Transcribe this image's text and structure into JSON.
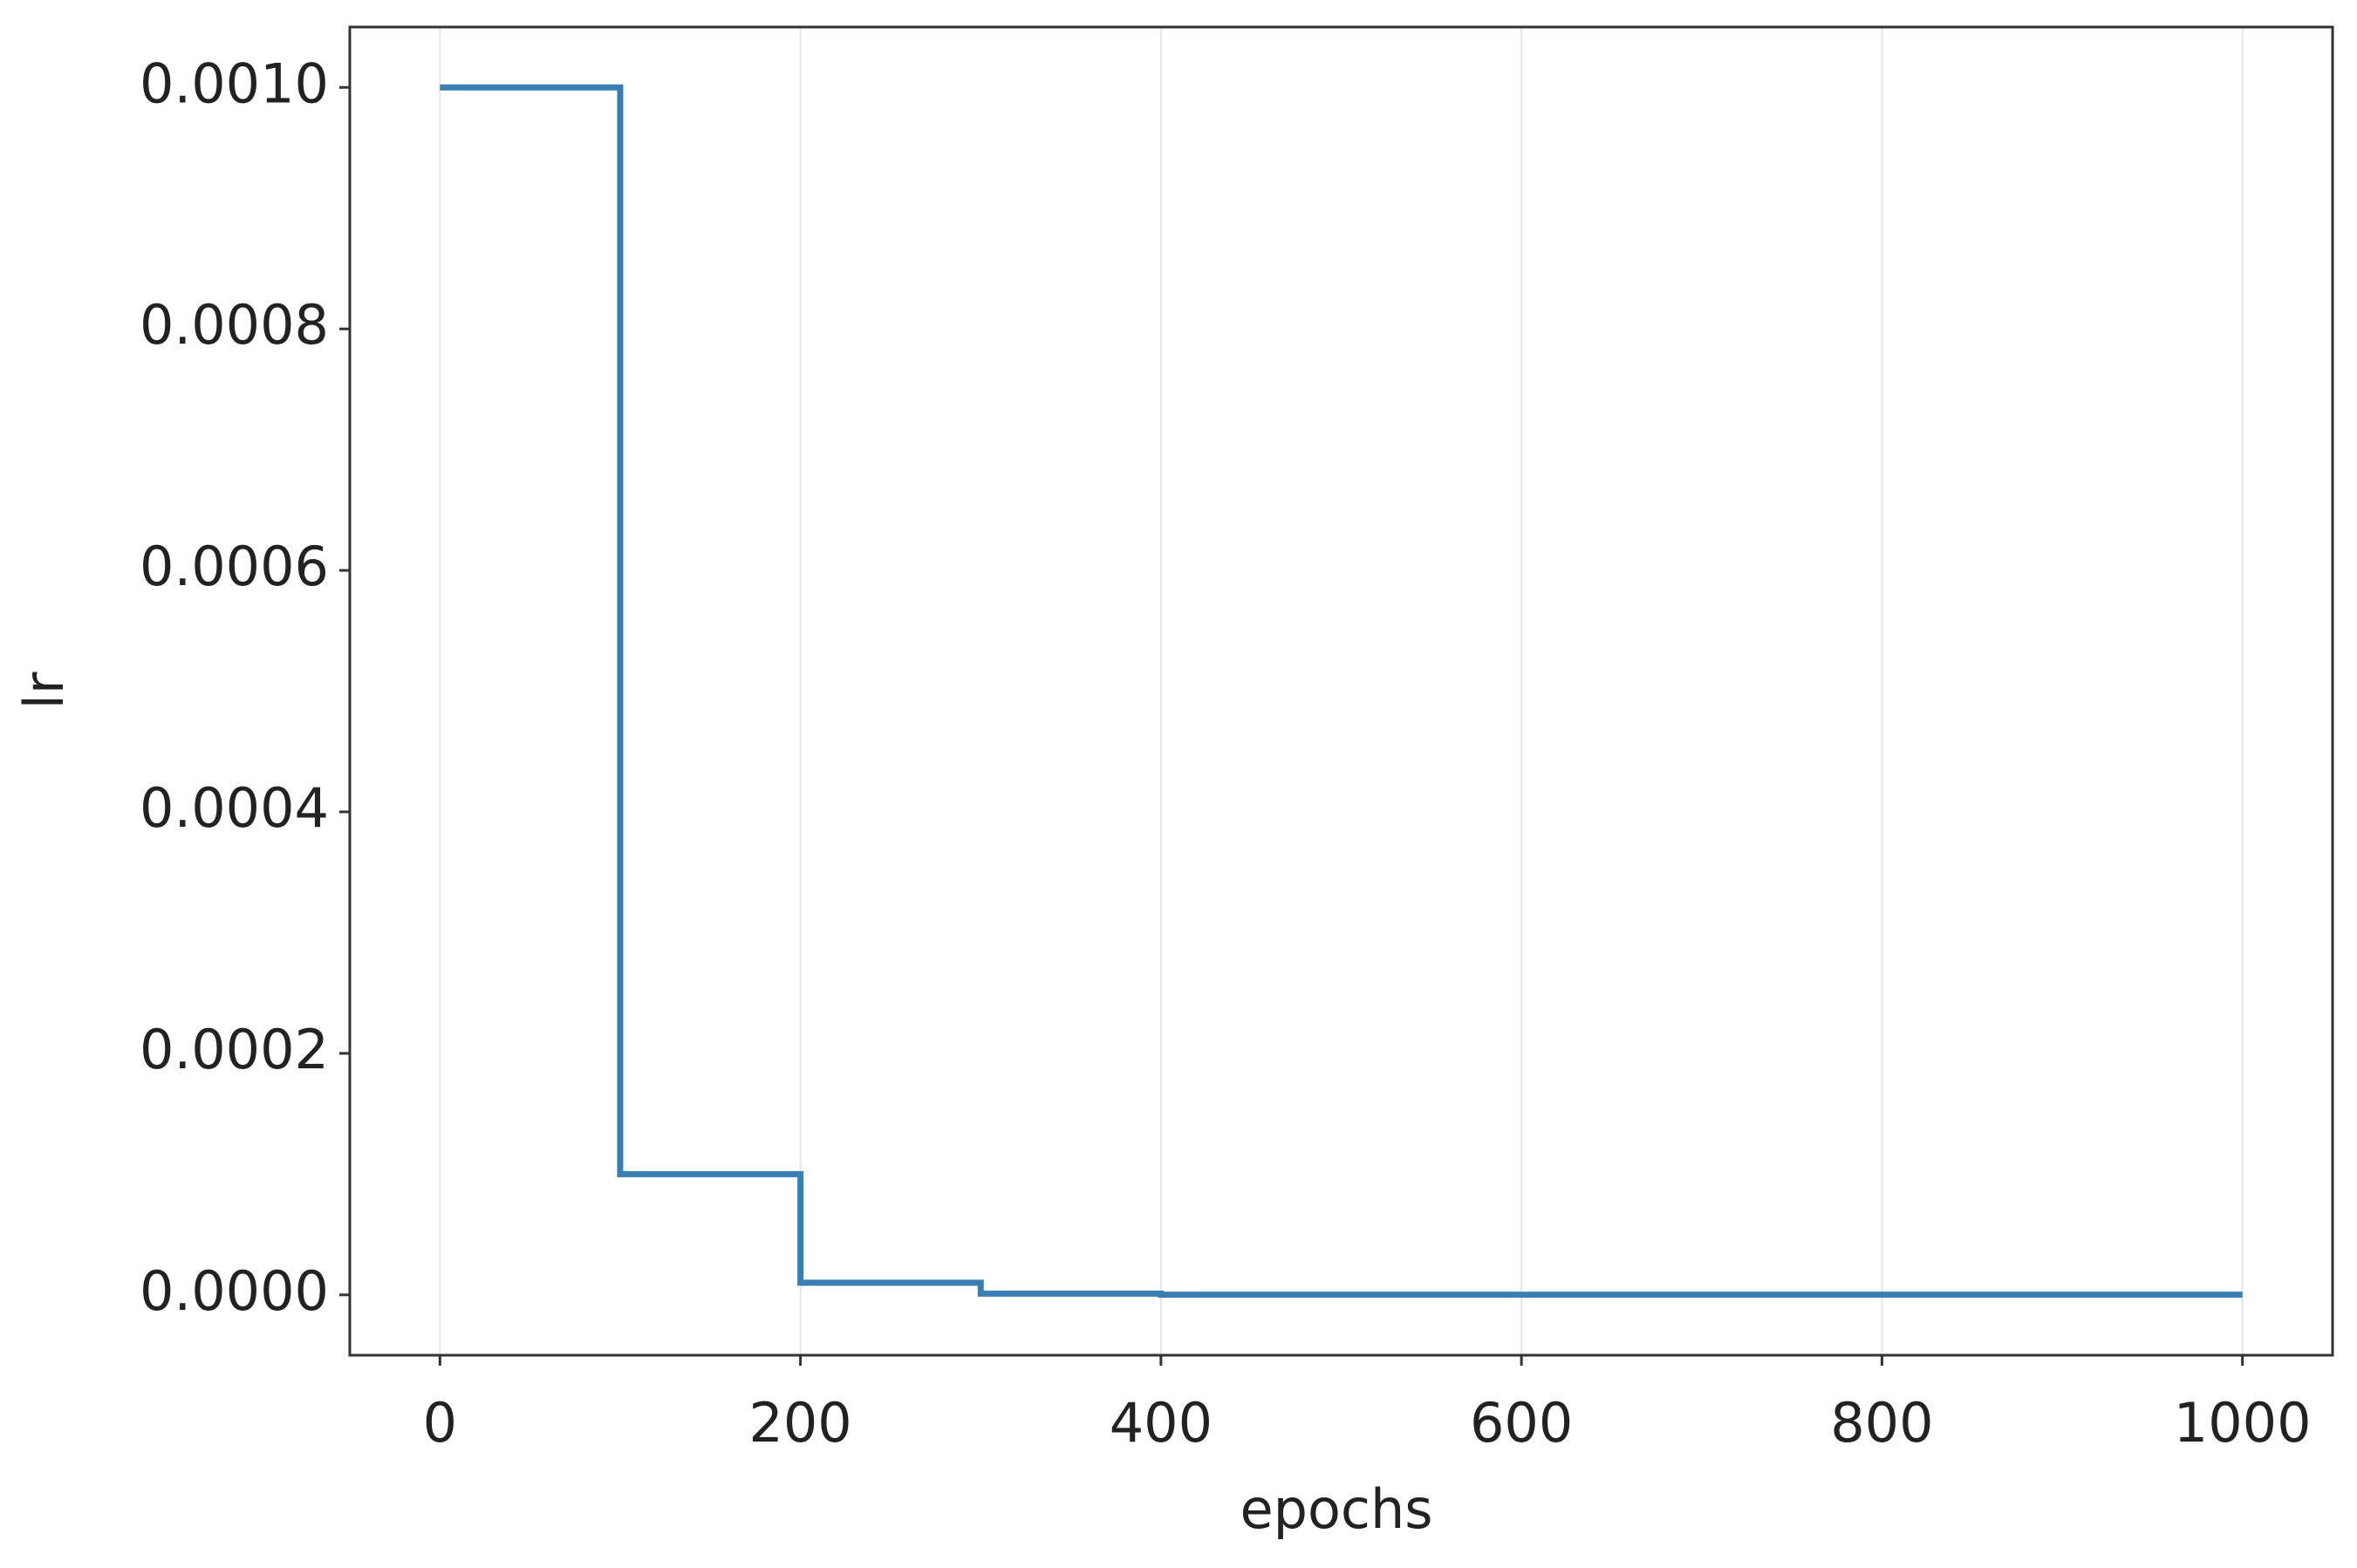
{
  "chart_data": {
    "type": "line",
    "x_label": "epochs",
    "y_label": "lr",
    "x": [
      0,
      100,
      100,
      200,
      200,
      300,
      300,
      400,
      400,
      1000
    ],
    "series": [
      {
        "color": "#3a7fb4",
        "values": [
          0.001,
          0.001,
          0.0001,
          0.0001,
          1e-05,
          1e-05,
          1e-06,
          1e-06,
          1e-07,
          1e-07
        ]
      }
    ],
    "xlim": [
      -50,
      1050
    ],
    "ylim": [
      -5e-05,
      0.00105
    ],
    "xticks": [
      0,
      200,
      400,
      600,
      800,
      1000
    ],
    "yticks": [
      {
        "value": 0,
        "label": "0.0000"
      },
      {
        "value": 0.0002,
        "label": "0.0002"
      },
      {
        "value": 0.0004,
        "label": "0.0004"
      },
      {
        "value": 0.0006,
        "label": "0.0006"
      },
      {
        "value": 0.0008,
        "label": "0.0008"
      },
      {
        "value": 0.001,
        "label": "0.0010"
      }
    ],
    "grid": "x"
  }
}
